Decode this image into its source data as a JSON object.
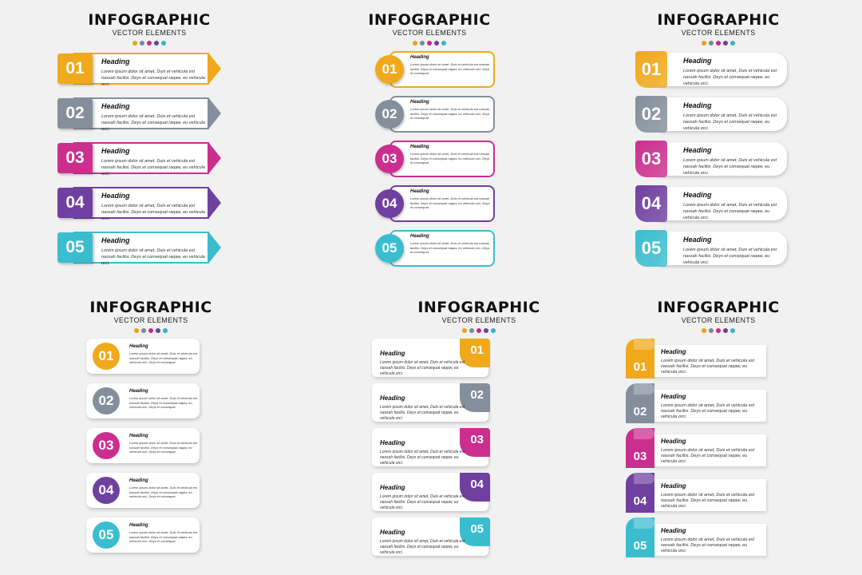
{
  "header": {
    "title": "INFOGRAPHIC",
    "subtitle": "VECTOR ELEMENTS",
    "dot_colors": [
      "#e9a21a",
      "#7c8898",
      "#c52a8c",
      "#6b3f9c",
      "#35b4c9"
    ]
  },
  "palette": {
    "yellow": "#e9a21a",
    "gray": "#7c8898",
    "magenta": "#c52a8c",
    "purple": "#6b3f9c",
    "cyan": "#35b4c9"
  },
  "steps": [
    {
      "num": "01",
      "color": "#f0a91b",
      "heading": "Heading"
    },
    {
      "num": "02",
      "color": "#858f9c",
      "heading": "Heading"
    },
    {
      "num": "03",
      "color": "#cc2e8e",
      "heading": "Heading"
    },
    {
      "num": "04",
      "color": "#7040a0",
      "heading": "Heading"
    },
    {
      "num": "05",
      "color": "#3bbdd0",
      "heading": "Heading"
    }
  ],
  "text": {
    "body_long": "Lorem ipsum dolor sit amet, Duis et vehicula est nassah facilisi. Deys et consequat raqaw, eu vehicula orci.",
    "body_short": "Lorem ipsum dolor sit amet. Duis et vehicula est nassah facilisi. Deys et consequat raqaw, eu vehicula orci. Deys et consequat"
  }
}
